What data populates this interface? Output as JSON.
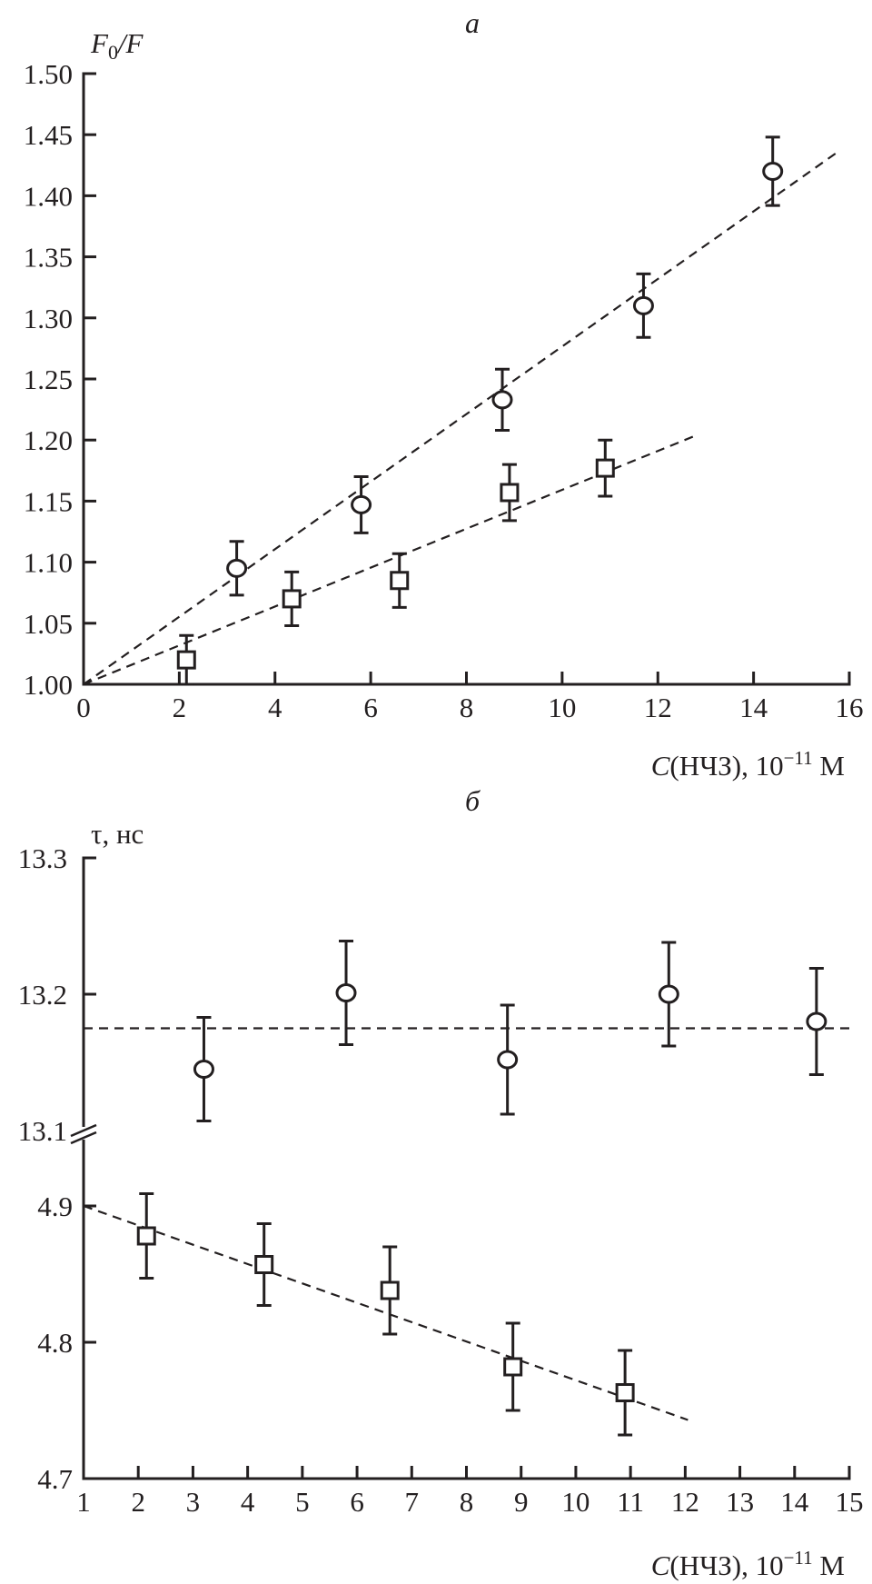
{
  "chart_data": [
    {
      "type": "scatter",
      "title": "а",
      "ylabel": "F0/F",
      "ylabel_main": "F",
      "ylabel_sub": "0",
      "ylabel_rest": "/F",
      "xlabel_var": "C",
      "xlabel_rest": "(НЧЗ), 10",
      "xlabel_exp": "−11",
      "xlabel_unit": " М",
      "xlim": [
        0,
        16
      ],
      "ylim": [
        1.0,
        1.5
      ],
      "xticks": [
        "0",
        "2",
        "4",
        "6",
        "8",
        "10",
        "12",
        "14",
        "16"
      ],
      "yticks": [
        "1.00",
        "1.05",
        "1.10",
        "1.15",
        "1.20",
        "1.25",
        "1.30",
        "1.35",
        "1.40",
        "1.45",
        "1.50"
      ],
      "series": [
        {
          "name": "circles",
          "marker": "circle",
          "x": [
            3.2,
            5.8,
            8.75,
            11.7,
            14.4
          ],
          "y": [
            1.095,
            1.147,
            1.233,
            1.31,
            1.42
          ],
          "err": [
            0.022,
            0.023,
            0.025,
            0.026,
            0.028
          ],
          "fit": [
            [
              0,
              1.0
            ],
            [
              15.8,
              1.437
            ]
          ]
        },
        {
          "name": "squares",
          "marker": "square",
          "x": [
            2.15,
            4.35,
            6.6,
            8.9,
            10.9
          ],
          "y": [
            1.02,
            1.07,
            1.085,
            1.157,
            1.177
          ],
          "err": [
            0.02,
            0.022,
            0.022,
            0.023,
            0.023
          ],
          "fit": [
            [
              0,
              1.0
            ],
            [
              12.75,
              1.203
            ]
          ]
        }
      ]
    },
    {
      "type": "scatter",
      "title": "б",
      "ylabel": "τ, нс",
      "xlabel_var": "C",
      "xlabel_rest": "(НЧЗ), 10",
      "xlabel_exp": "−11",
      "xlabel_unit": " М",
      "xlim": [
        1,
        15
      ],
      "ylim_upper": [
        13.1,
        13.3
      ],
      "ylim_lower": [
        4.7,
        4.9
      ],
      "axis_break": true,
      "xticks": [
        "1",
        "2",
        "3",
        "4",
        "5",
        "6",
        "7",
        "8",
        "9",
        "10",
        "11",
        "12",
        "13",
        "14",
        "15"
      ],
      "yticks_upper": [
        "13.1",
        "13.2",
        "13.3"
      ],
      "yticks_lower": [
        "4.7",
        "4.8",
        "4.9"
      ],
      "series": [
        {
          "name": "circles",
          "marker": "circle",
          "panel": "upper",
          "x": [
            3.2,
            5.8,
            8.75,
            11.7,
            14.4
          ],
          "y": [
            13.145,
            13.201,
            13.152,
            13.2,
            13.18
          ],
          "err": [
            0.038,
            0.038,
            0.04,
            0.038,
            0.039
          ],
          "fit": [
            [
              1,
              13.175
            ],
            [
              15,
              13.175
            ]
          ]
        },
        {
          "name": "squares",
          "marker": "square",
          "panel": "lower",
          "x": [
            2.15,
            4.3,
            6.6,
            8.85,
            10.9
          ],
          "y": [
            4.878,
            4.857,
            4.838,
            4.782,
            4.763
          ],
          "err": [
            0.031,
            0.03,
            0.032,
            0.032,
            0.031
          ],
          "fit": [
            [
              1,
              4.9
            ],
            [
              12.05,
              4.743
            ]
          ]
        }
      ]
    }
  ]
}
